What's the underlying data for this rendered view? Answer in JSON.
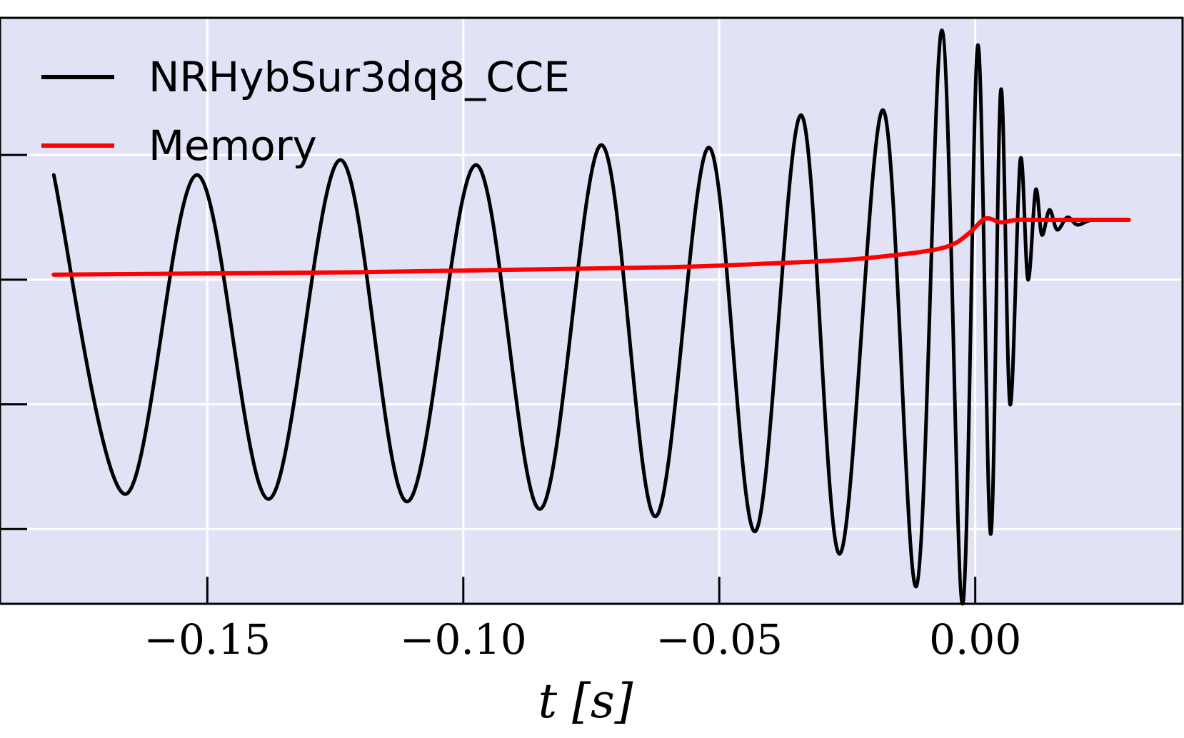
{
  "chart_data": {
    "type": "line",
    "title": "",
    "xlabel": "t [s]",
    "ylabel": "",
    "xlim": [
      -0.1905,
      0.0405
    ],
    "ylim": [
      -1.3,
      1.05
    ],
    "x_ticks": [
      {
        "value": -0.15,
        "label": "−0.15"
      },
      {
        "value": -0.1,
        "label": "−0.10"
      },
      {
        "value": -0.05,
        "label": "−0.05"
      },
      {
        "value": 0.0,
        "label": "0.00"
      }
    ],
    "y_grid": [
      0.5,
      0.0,
      -0.5,
      -1.0
    ],
    "grid": true,
    "legend": "top-left",
    "background": "#e1e2f6",
    "series": [
      {
        "name": "NRHybSur3dq8_CCE",
        "color": "#000000",
        "x": [
          -0.18,
          -0.166,
          -0.152,
          -0.138,
          -0.124,
          -0.111,
          -0.0975,
          -0.085,
          -0.073,
          -0.0625,
          -0.052,
          -0.043,
          -0.034,
          -0.0265,
          -0.018,
          -0.0115,
          -0.0065,
          -0.0025,
          0.0005,
          0.003,
          0.005,
          0.0068,
          0.0088,
          0.0103,
          0.0118,
          0.013,
          0.0145,
          0.016,
          0.018,
          0.02,
          0.023,
          0.03
        ],
        "y": [
          0.42,
          -0.86,
          0.42,
          -0.88,
          0.48,
          -0.89,
          0.46,
          -0.92,
          0.54,
          -0.95,
          0.53,
          -1.01,
          0.66,
          -1.1,
          0.68,
          -1.23,
          1.0,
          -1.3,
          0.94,
          -1.02,
          0.76,
          -0.5,
          0.48,
          0.0,
          0.36,
          0.18,
          0.28,
          0.2,
          0.25,
          0.22,
          0.24,
          0.24
        ],
        "style": "smooth"
      },
      {
        "name": "Memory",
        "color": "#ff0000",
        "x": [
          -0.18,
          -0.15,
          -0.12,
          -0.09,
          -0.06,
          -0.04,
          -0.025,
          -0.015,
          -0.008,
          -0.004,
          -0.001,
          0.002,
          0.005,
          0.008,
          0.011,
          0.015,
          0.03
        ],
        "y": [
          0.02,
          0.025,
          0.03,
          0.04,
          0.05,
          0.065,
          0.08,
          0.1,
          0.12,
          0.145,
          0.19,
          0.245,
          0.23,
          0.24,
          0.24,
          0.24,
          0.24
        ],
        "style": "linear"
      }
    ]
  }
}
